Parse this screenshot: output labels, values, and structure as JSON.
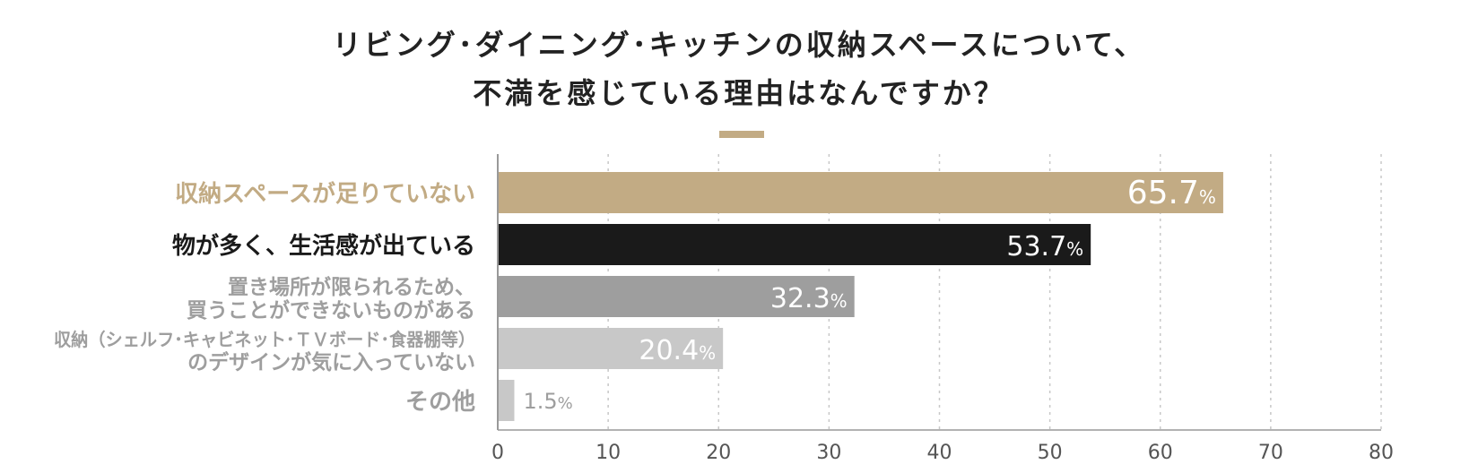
{
  "title_lines": [
    "リビング･ダイニング･キッチンの収納スペースについて、",
    "不満を感じている理由はなんですか？"
  ],
  "accent_color": "#c2ab84",
  "chart_data": {
    "type": "bar",
    "orientation": "horizontal",
    "title": "リビング･ダイニング･キッチンの収納スペースについて、不満を感じている理由はなんですか？",
    "categories": [
      [
        "収納スペースが足りていない"
      ],
      [
        "物が多く、生活感が出ている"
      ],
      [
        "置き場所が限られるため、",
        "買うことができないものがある"
      ],
      [
        "収納（シェルフ･キャビネット･ＴＶボード･食器棚等）",
        "のデザインが気に入っていない"
      ],
      [
        "その他"
      ]
    ],
    "values": [
      65.7,
      53.7,
      32.3,
      20.4,
      1.5
    ],
    "value_unit": "%",
    "bar_colors": [
      "#c2ab84",
      "#1a1a1a",
      "#9e9e9e",
      "#c8c8c8",
      "#c8c8c8"
    ],
    "label_colors": [
      "#c2ab84",
      "#1a1a1a",
      "#9e9e9e",
      "#9e9e9e",
      "#9e9e9e"
    ],
    "xlim": [
      0,
      80
    ],
    "xticks": [
      0,
      10,
      20,
      30,
      40,
      50,
      60,
      70,
      80
    ],
    "grid": true,
    "legend": "none"
  }
}
